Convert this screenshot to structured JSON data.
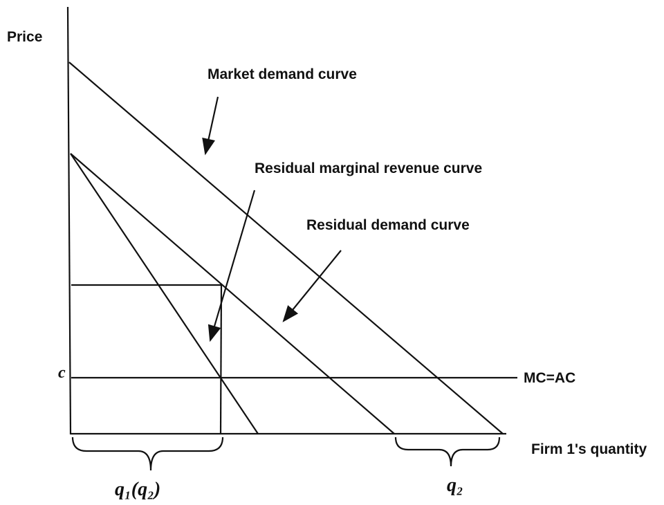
{
  "axes": {
    "y_label": "Price",
    "x_label": "Firm 1's quantity"
  },
  "curves": {
    "market_demand": "Market demand curve",
    "residual_mr": "Residual marginal revenue curve",
    "residual_demand": "Residual demand curve",
    "cost": "MC=AC"
  },
  "cost_label": "c",
  "quantities": {
    "q1": "q₁(q₂)",
    "q2": "q₂"
  }
}
